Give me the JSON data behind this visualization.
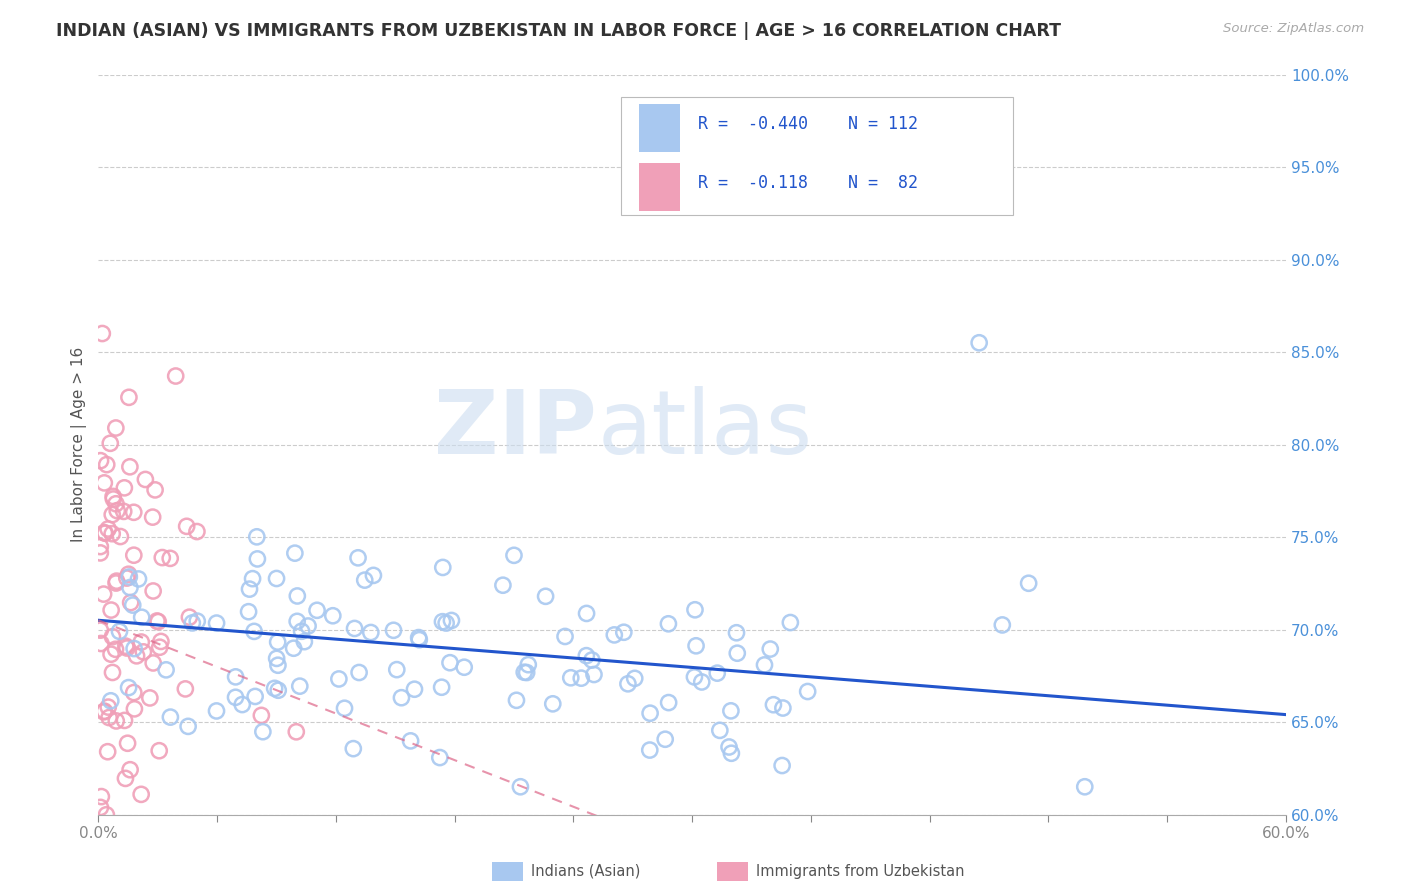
{
  "title": "INDIAN (ASIAN) VS IMMIGRANTS FROM UZBEKISTAN IN LABOR FORCE | AGE > 16 CORRELATION CHART",
  "source_text": "Source: ZipAtlas.com",
  "ylabel_label": "In Labor Force | Age > 16",
  "xmin": 0.0,
  "xmax": 0.6,
  "ymin": 0.6,
  "ymax": 1.0,
  "blue_color": "#a8c8f0",
  "pink_color": "#f0a0b8",
  "blue_line_color": "#2255cc",
  "pink_line_color": "#dd6688",
  "watermark": "ZIPAtlas",
  "watermark_color": "#ccddf0",
  "blue_r": -0.44,
  "pink_r": -0.118,
  "blue_n": 112,
  "pink_n": 82,
  "ytick_values": [
    0.6,
    0.65,
    0.7,
    0.75,
    0.8,
    0.85,
    0.9,
    0.95,
    1.0
  ],
  "ytick_labels": [
    "60.0%",
    "65.0%",
    "70.0%",
    "75.0%",
    "80.0%",
    "85.0%",
    "90.0%",
    "95.0%",
    "100.0%"
  ],
  "blue_intercept": 0.705,
  "blue_slope": -0.085,
  "pink_intercept": 0.705,
  "pink_slope": -0.42
}
